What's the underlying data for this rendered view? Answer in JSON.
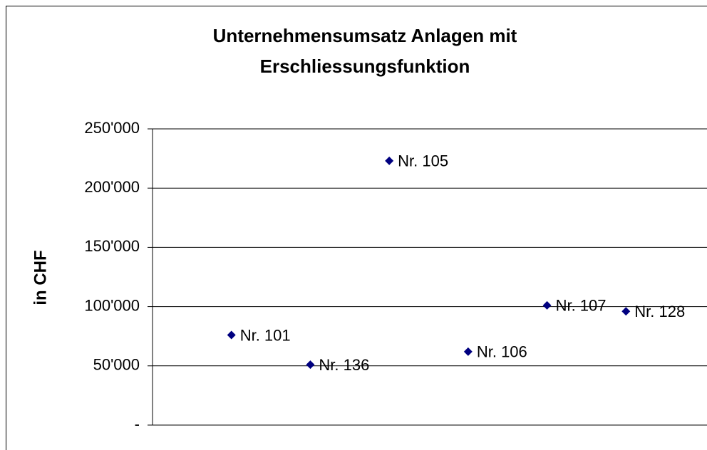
{
  "chart_data": {
    "type": "scatter",
    "title": [
      "Unternehmensumsatz Anlagen mit",
      "Erschliessungsfunktion"
    ],
    "y_label": "in CHF",
    "x": [
      1,
      2,
      3,
      4,
      5,
      6
    ],
    "values": [
      76000,
      51000,
      223000,
      62000,
      101000,
      96000
    ],
    "point_labels": [
      "Nr. 101",
      "Nr. 136",
      "Nr. 105",
      "Nr. 106",
      "Nr. 107",
      "Nr. 128"
    ],
    "color": "#000080",
    "xlim": [
      0,
      7
    ],
    "ylim": [
      0,
      250000
    ],
    "yticks": [
      {
        "value": 0,
        "label": "-"
      },
      {
        "value": 50000,
        "label": "50'000"
      },
      {
        "value": 100000,
        "label": "100'000"
      },
      {
        "value": 150000,
        "label": "150'000"
      },
      {
        "value": 200000,
        "label": "200'000"
      },
      {
        "value": 250000,
        "label": "250'000"
      }
    ],
    "grid": true
  }
}
